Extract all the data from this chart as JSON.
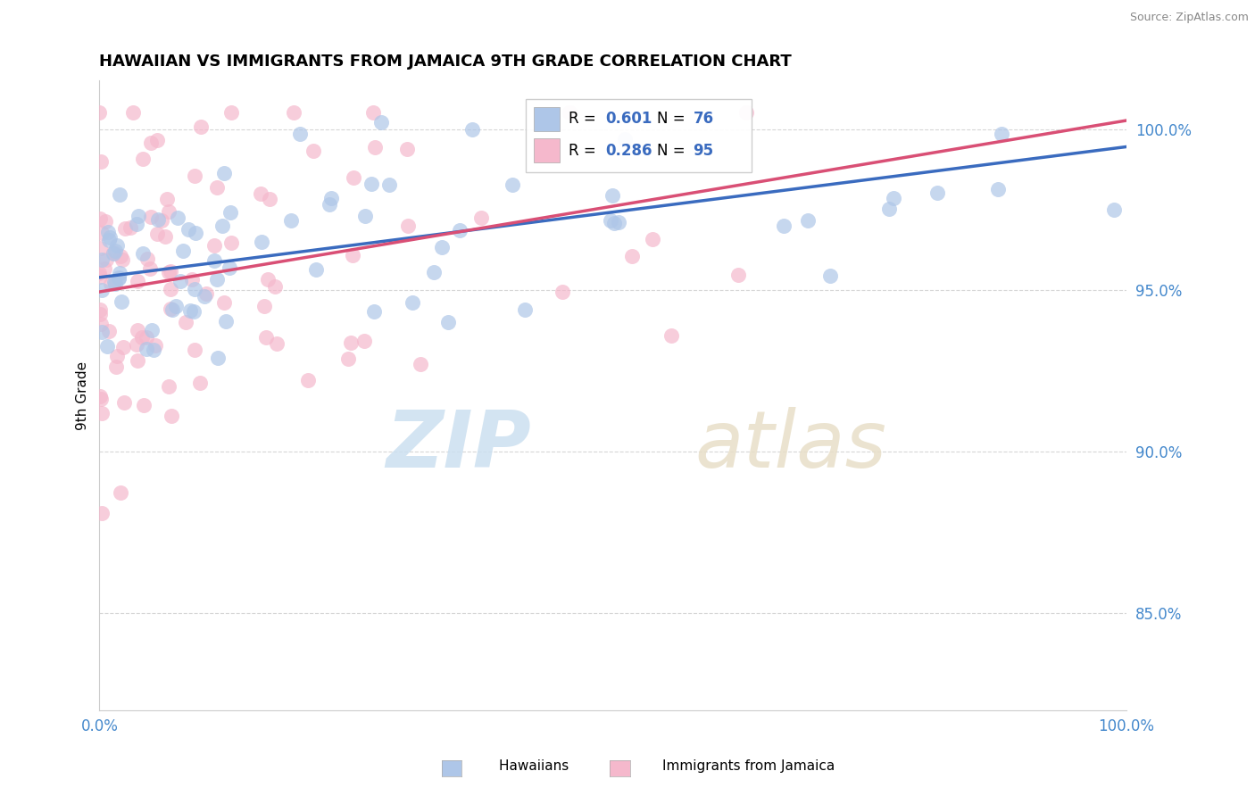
{
  "title": "HAWAIIAN VS IMMIGRANTS FROM JAMAICA 9TH GRADE CORRELATION CHART",
  "source": "Source: ZipAtlas.com",
  "ylabel": "9th Grade",
  "y_ticks": [
    0.85,
    0.9,
    0.95,
    1.0
  ],
  "y_tick_labels": [
    "85.0%",
    "90.0%",
    "95.0%",
    "100.0%"
  ],
  "x_range": [
    0.0,
    1.0
  ],
  "y_range": [
    0.82,
    1.015
  ],
  "hawaiians_R": 0.601,
  "hawaiians_N": 76,
  "jamaicans_R": 0.286,
  "jamaicans_N": 95,
  "hawaiian_color": "#aec6e8",
  "jamaican_color": "#f5b8cc",
  "hawaiian_line_color": "#3a6bbf",
  "jamaican_line_color": "#d94f75",
  "legend_R_color": "#3a6bbf",
  "legend_box_color": "#e8eef8",
  "watermark_zip_color": "#cce0f0",
  "watermark_atlas_color": "#e8dfc8"
}
